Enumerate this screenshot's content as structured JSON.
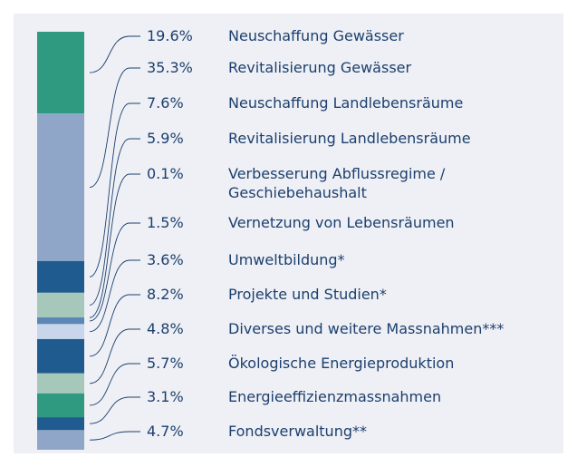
{
  "chart_data": {
    "type": "stacked-bar",
    "categories": [
      "Neuschaffung Gewässer",
      "Revitalisierung Gewässer",
      "Neuschaffung Landlebensräume",
      "Revitalisierung Landlebensräume",
      "Verbesserung Abflussregime /\nGeschiebehaushalt",
      "Vernetzung von Lebensräumen",
      "Umweltbildung*",
      "Projekte und Studien*",
      "Diverses und weitere Massnahmen***",
      "Ökologische Energieproduktion",
      "Energieeffizienzmassnahmen",
      "Fondsverwaltung**"
    ],
    "values": [
      19.6,
      35.3,
      7.6,
      5.9,
      0.1,
      1.5,
      3.6,
      8.2,
      4.8,
      5.7,
      3.1,
      4.7
    ],
    "value_labels": [
      "19.6%",
      "35.3%",
      "7.6%",
      "5.9%",
      "0.1%",
      "1.5%",
      "3.6%",
      "8.2%",
      "4.8%",
      "5.7%",
      "3.1%",
      "4.7%"
    ],
    "colors": [
      "#2f9a80",
      "#8fa6c8",
      "#1f5b8e",
      "#a5c8bb",
      "#5b86b6",
      "#5b86b6",
      "#c8d5ea",
      "#1f5b8e",
      "#a5c8bb",
      "#2f9a80",
      "#1f5b8e",
      "#8fa6c8"
    ]
  }
}
